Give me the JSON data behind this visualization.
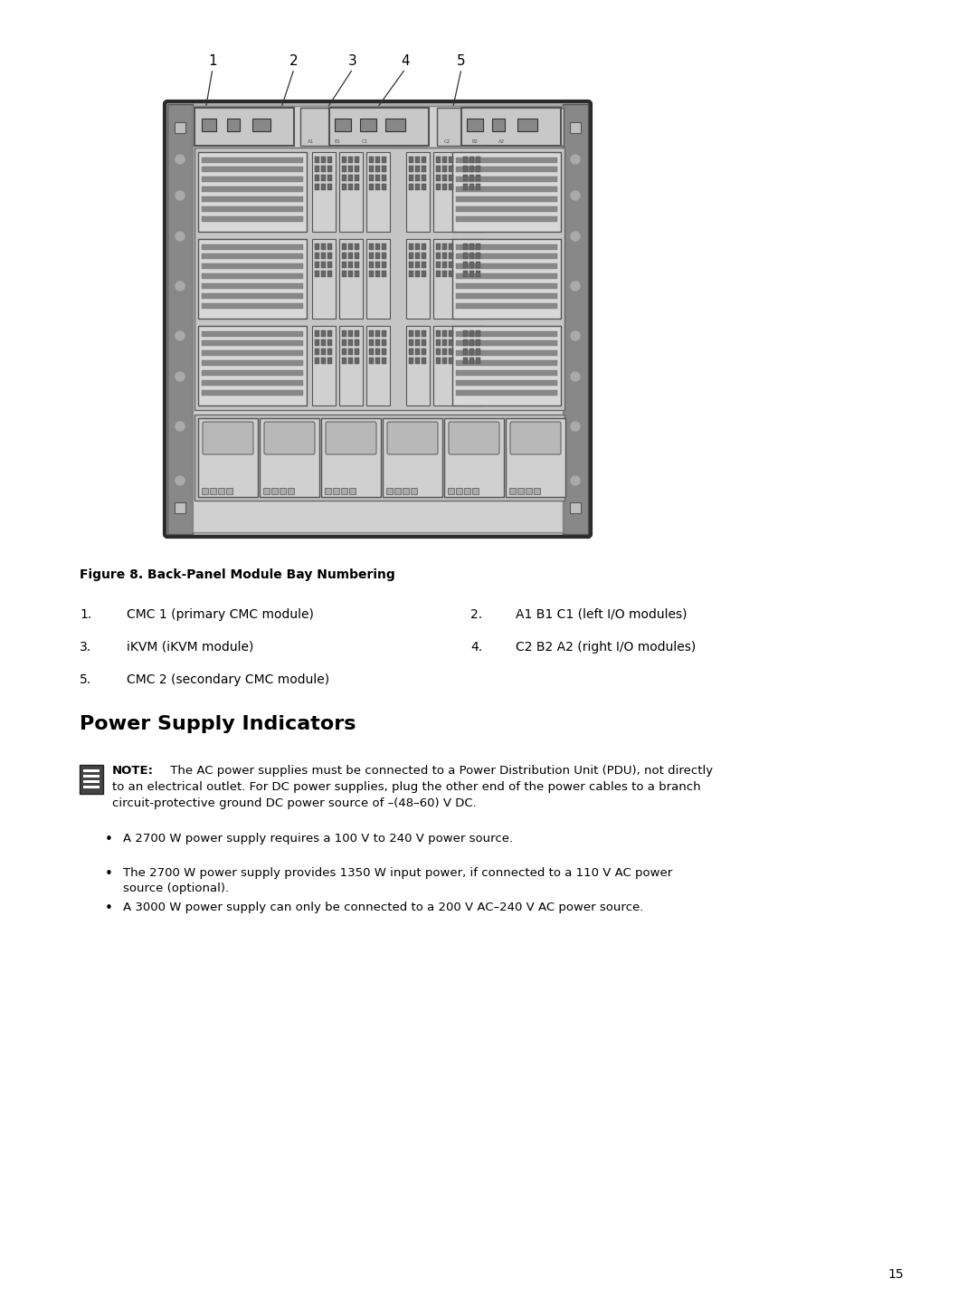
{
  "page_background": "#ffffff",
  "page_number": "15",
  "figure_caption": "Figure 8. Back-Panel Module Bay Numbering",
  "list_items_left": [
    {
      "num": "1.",
      "text": "CMC 1 (primary CMC module)"
    },
    {
      "num": "3.",
      "text": "iKVM (iKVM module)"
    },
    {
      "num": "5.",
      "text": "CMC 2 (secondary CMC module)"
    }
  ],
  "list_items_right": [
    {
      "num": "2.",
      "text": "A1 B1 C1 (left I/O modules)"
    },
    {
      "num": "4.",
      "text": "C2 B2 A2 (right I/O modules)"
    }
  ],
  "section_title": "Power Supply Indicators",
  "note_label": "NOTE:",
  "note_text": " The AC power supplies must be connected to a Power Distribution Unit (PDU), not directly\nto an electrical outlet. For DC power supplies, plug the other end of the power cables to a branch\ncircuit-protective ground DC power source of –(48–60) V DC.",
  "bullets": [
    "A 2700 W power supply requires a 100 V to 240 V power source.",
    "The 2700 W power supply provides 1350 W input power, if connected to a 110 V AC power\nsource (optional).",
    "A 3000 W power supply can only be connected to a 200 V AC–240 V AC power source."
  ],
  "callout_labels": [
    "1",
    "2",
    "3",
    "4",
    "5"
  ],
  "text_color": "#000000"
}
